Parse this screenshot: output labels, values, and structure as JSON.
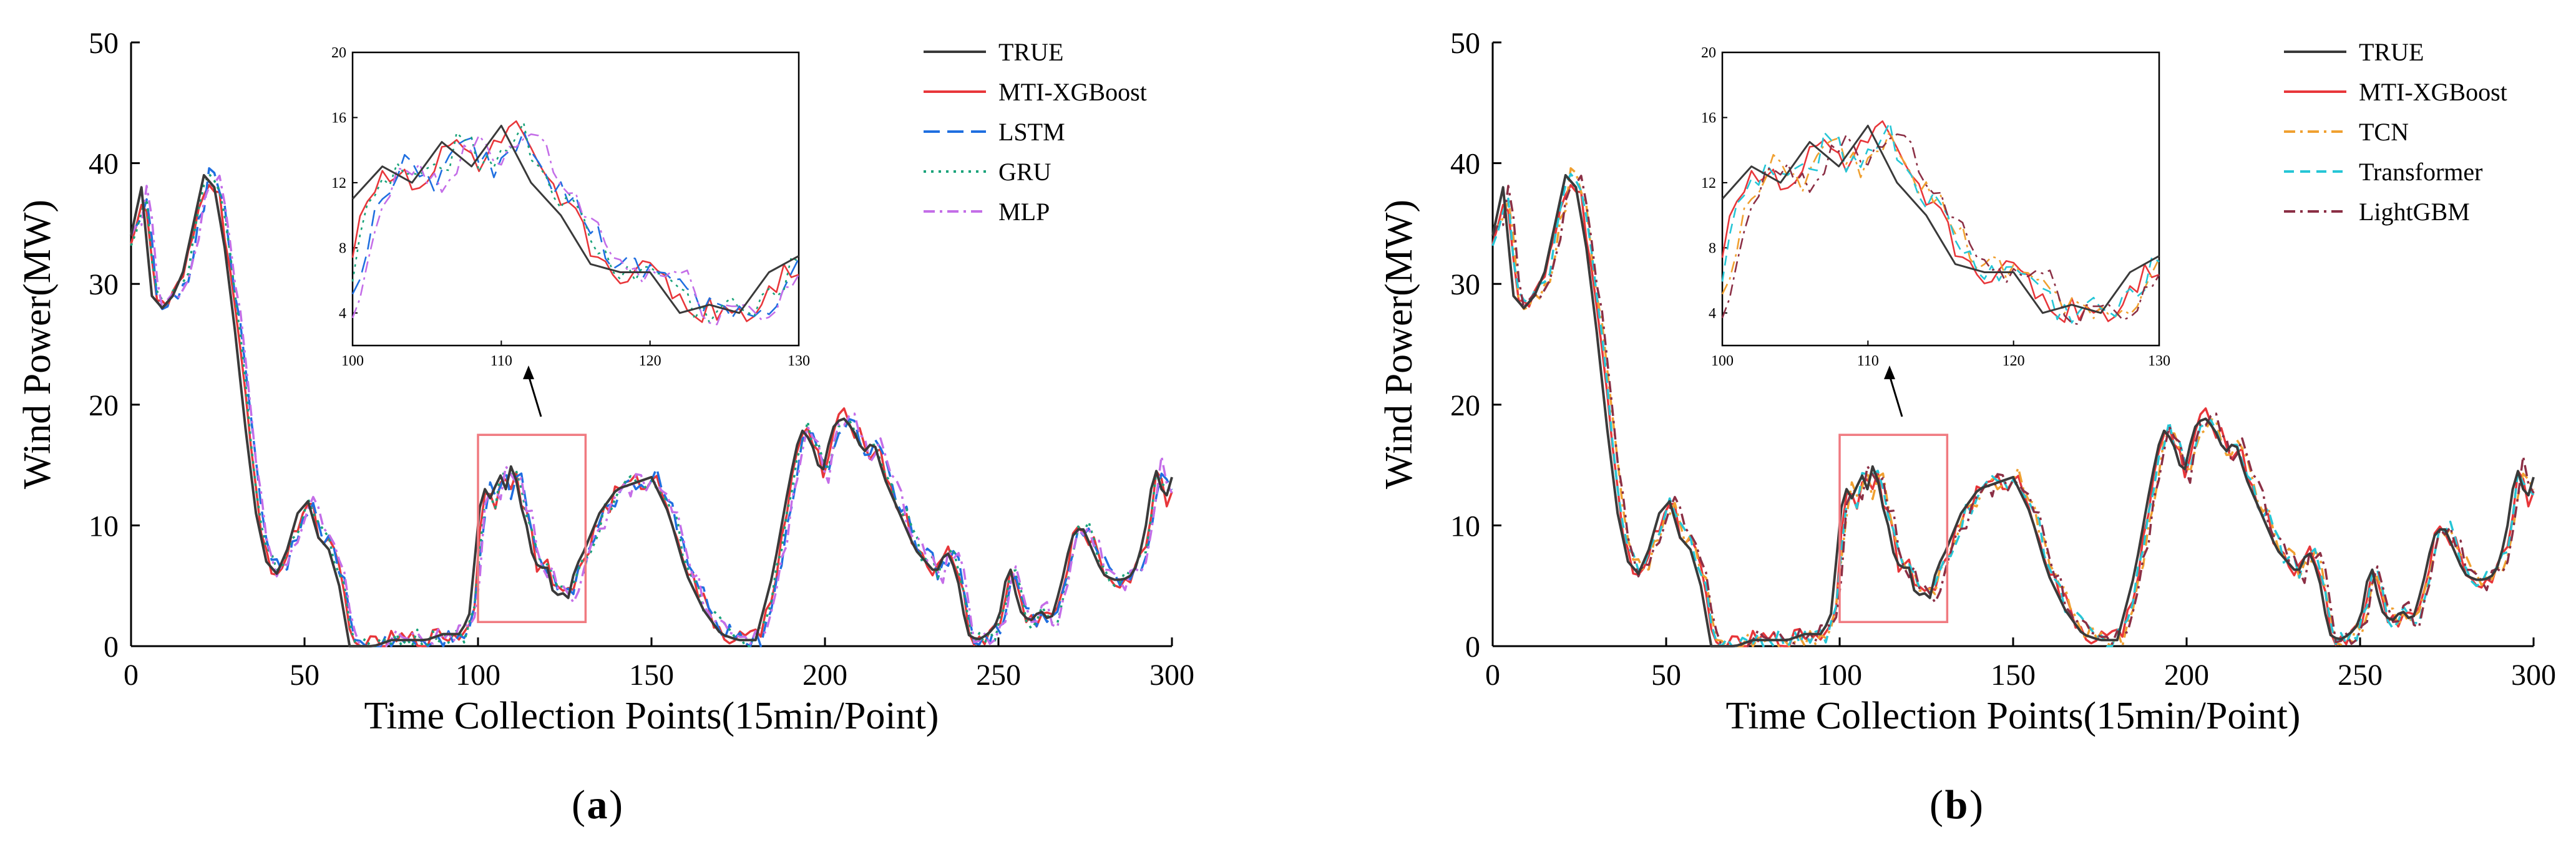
{
  "chart_data": [
    {
      "type": "line",
      "panel_label": "a",
      "xlabel": "Time Collection Points(15min/Point)",
      "ylabel": "Wind Power(MW)",
      "xlim": [
        0,
        300
      ],
      "ylim": [
        0,
        50
      ],
      "xticks": [
        0,
        50,
        100,
        150,
        200,
        250,
        300
      ],
      "yticks": [
        0,
        10,
        20,
        30,
        40,
        50
      ],
      "highlight_box": {
        "x": [
          100,
          131
        ],
        "y": [
          2,
          17.5
        ]
      },
      "inset": {
        "xlim": [
          100,
          130
        ],
        "ylim": [
          2,
          20
        ],
        "xticks": [
          100,
          110,
          120,
          130
        ],
        "yticks": [
          4,
          8,
          12,
          16,
          20
        ]
      },
      "legend_position": "top-right",
      "series": [
        {
          "name": "TRUE",
          "color": "#3a3a3a",
          "dash": "solid"
        },
        {
          "name": "MTI-XGBoost",
          "color": "#e8363a",
          "dash": "solid"
        },
        {
          "name": "LSTM",
          "color": "#1f6fe0",
          "dash": "long-dash"
        },
        {
          "name": "GRU",
          "color": "#1aa37a",
          "dash": "dot"
        },
        {
          "name": "MLP",
          "color": "#c46ee8",
          "dash": "dash-dot"
        }
      ],
      "true_series": {
        "x": [
          0,
          3,
          6,
          9,
          12,
          15,
          18,
          21,
          24,
          27,
          30,
          33,
          36,
          39,
          42,
          45,
          48,
          51,
          54,
          57,
          60,
          63,
          66,
          70,
          75,
          80,
          85,
          90,
          95,
          98,
          100,
          102,
          104,
          106,
          108,
          110,
          112,
          114,
          116,
          118,
          120,
          122,
          124,
          126,
          128,
          130,
          135,
          140,
          145,
          150,
          155,
          160,
          165,
          170,
          175,
          180,
          185,
          190,
          193,
          196,
          199,
          202,
          205,
          208,
          211,
          214,
          217,
          220,
          223,
          226,
          229,
          232,
          235,
          238,
          241,
          244,
          247,
          250,
          253,
          256,
          259,
          262,
          265,
          268,
          271,
          274,
          277,
          280,
          283,
          286,
          289,
          292,
          295,
          298,
          300
        ],
        "y": [
          34,
          38,
          29,
          28,
          29,
          31,
          35,
          39,
          38,
          33,
          26,
          18,
          11,
          7,
          6,
          8,
          11,
          12,
          9,
          8,
          5,
          0,
          0,
          0,
          0.5,
          0.5,
          0.5,
          1,
          1,
          3,
          11,
          13,
          12,
          14.5,
          13,
          15.5,
          12,
          10,
          7,
          6.5,
          6.5,
          4,
          4.5,
          4,
          6.5,
          7.5,
          11,
          13,
          13.5,
          14,
          11,
          6,
          3,
          1,
          0.5,
          0.5,
          6,
          14,
          18,
          17,
          14,
          18,
          19,
          18,
          16,
          17,
          14,
          12,
          10,
          8,
          7,
          6,
          8,
          6,
          1,
          0.5,
          1,
          2,
          7,
          3,
          2,
          3,
          2,
          5,
          9,
          10,
          8,
          6,
          5.5,
          5.5,
          6,
          9,
          15,
          12,
          14
        ]
      }
    },
    {
      "type": "line",
      "panel_label": "b",
      "xlabel": "Time Collection Points(15min/Point)",
      "ylabel": "Wind Power(MW)",
      "xlim": [
        0,
        300
      ],
      "ylim": [
        0,
        50
      ],
      "xticks": [
        0,
        50,
        100,
        150,
        200,
        250,
        300
      ],
      "yticks": [
        0,
        10,
        20,
        30,
        40,
        50
      ],
      "highlight_box": {
        "x": [
          100,
          131
        ],
        "y": [
          2,
          17.5
        ]
      },
      "inset": {
        "xlim": [
          100,
          130
        ],
        "ylim": [
          2,
          20
        ],
        "xticks": [
          100,
          110,
          120,
          130
        ],
        "yticks": [
          4,
          8,
          12,
          16,
          20
        ]
      },
      "legend_position": "top-right",
      "series": [
        {
          "name": "TRUE",
          "color": "#3a3a3a",
          "dash": "solid"
        },
        {
          "name": "MTI-XGBoost",
          "color": "#e8363a",
          "dash": "solid"
        },
        {
          "name": "TCN",
          "color": "#f0a030",
          "dash": "dash-dot"
        },
        {
          "name": "Transformer",
          "color": "#26c6d6",
          "dash": "dash"
        },
        {
          "name": "LightGBM",
          "color": "#8b2f45",
          "dash": "dash-dot"
        }
      ],
      "true_series": {
        "x": [
          0,
          3,
          6,
          9,
          12,
          15,
          18,
          21,
          24,
          27,
          30,
          33,
          36,
          39,
          42,
          45,
          48,
          51,
          54,
          57,
          60,
          63,
          66,
          70,
          75,
          80,
          85,
          90,
          95,
          98,
          100,
          102,
          104,
          106,
          108,
          110,
          112,
          114,
          116,
          118,
          120,
          122,
          124,
          126,
          128,
          130,
          135,
          140,
          145,
          150,
          155,
          160,
          165,
          170,
          175,
          180,
          185,
          190,
          193,
          196,
          199,
          202,
          205,
          208,
          211,
          214,
          217,
          220,
          223,
          226,
          229,
          232,
          235,
          238,
          241,
          244,
          247,
          250,
          253,
          256,
          259,
          262,
          265,
          268,
          271,
          274,
          277,
          280,
          283,
          286,
          289,
          292,
          295,
          298,
          300
        ],
        "y": [
          34,
          38,
          29,
          28,
          29,
          31,
          35,
          39,
          38,
          33,
          26,
          18,
          11,
          7,
          6,
          8,
          11,
          12,
          9,
          8,
          5,
          0,
          0,
          0,
          0.5,
          0.5,
          0.5,
          1,
          1,
          3,
          11,
          13,
          12,
          14.5,
          13,
          15.5,
          12,
          10,
          7,
          6.5,
          6.5,
          4,
          4.5,
          4,
          6.5,
          7.5,
          11,
          13,
          13.5,
          14,
          11,
          6,
          3,
          1,
          0.5,
          0.5,
          6,
          14,
          18,
          17,
          14,
          18,
          19,
          18,
          16,
          17,
          14,
          12,
          10,
          8,
          7,
          6,
          8,
          6,
          1,
          0.5,
          1,
          2,
          7,
          3,
          2,
          3,
          2,
          5,
          9,
          10,
          8,
          6,
          5.5,
          5.5,
          6,
          9,
          15,
          12,
          14
        ]
      }
    }
  ]
}
